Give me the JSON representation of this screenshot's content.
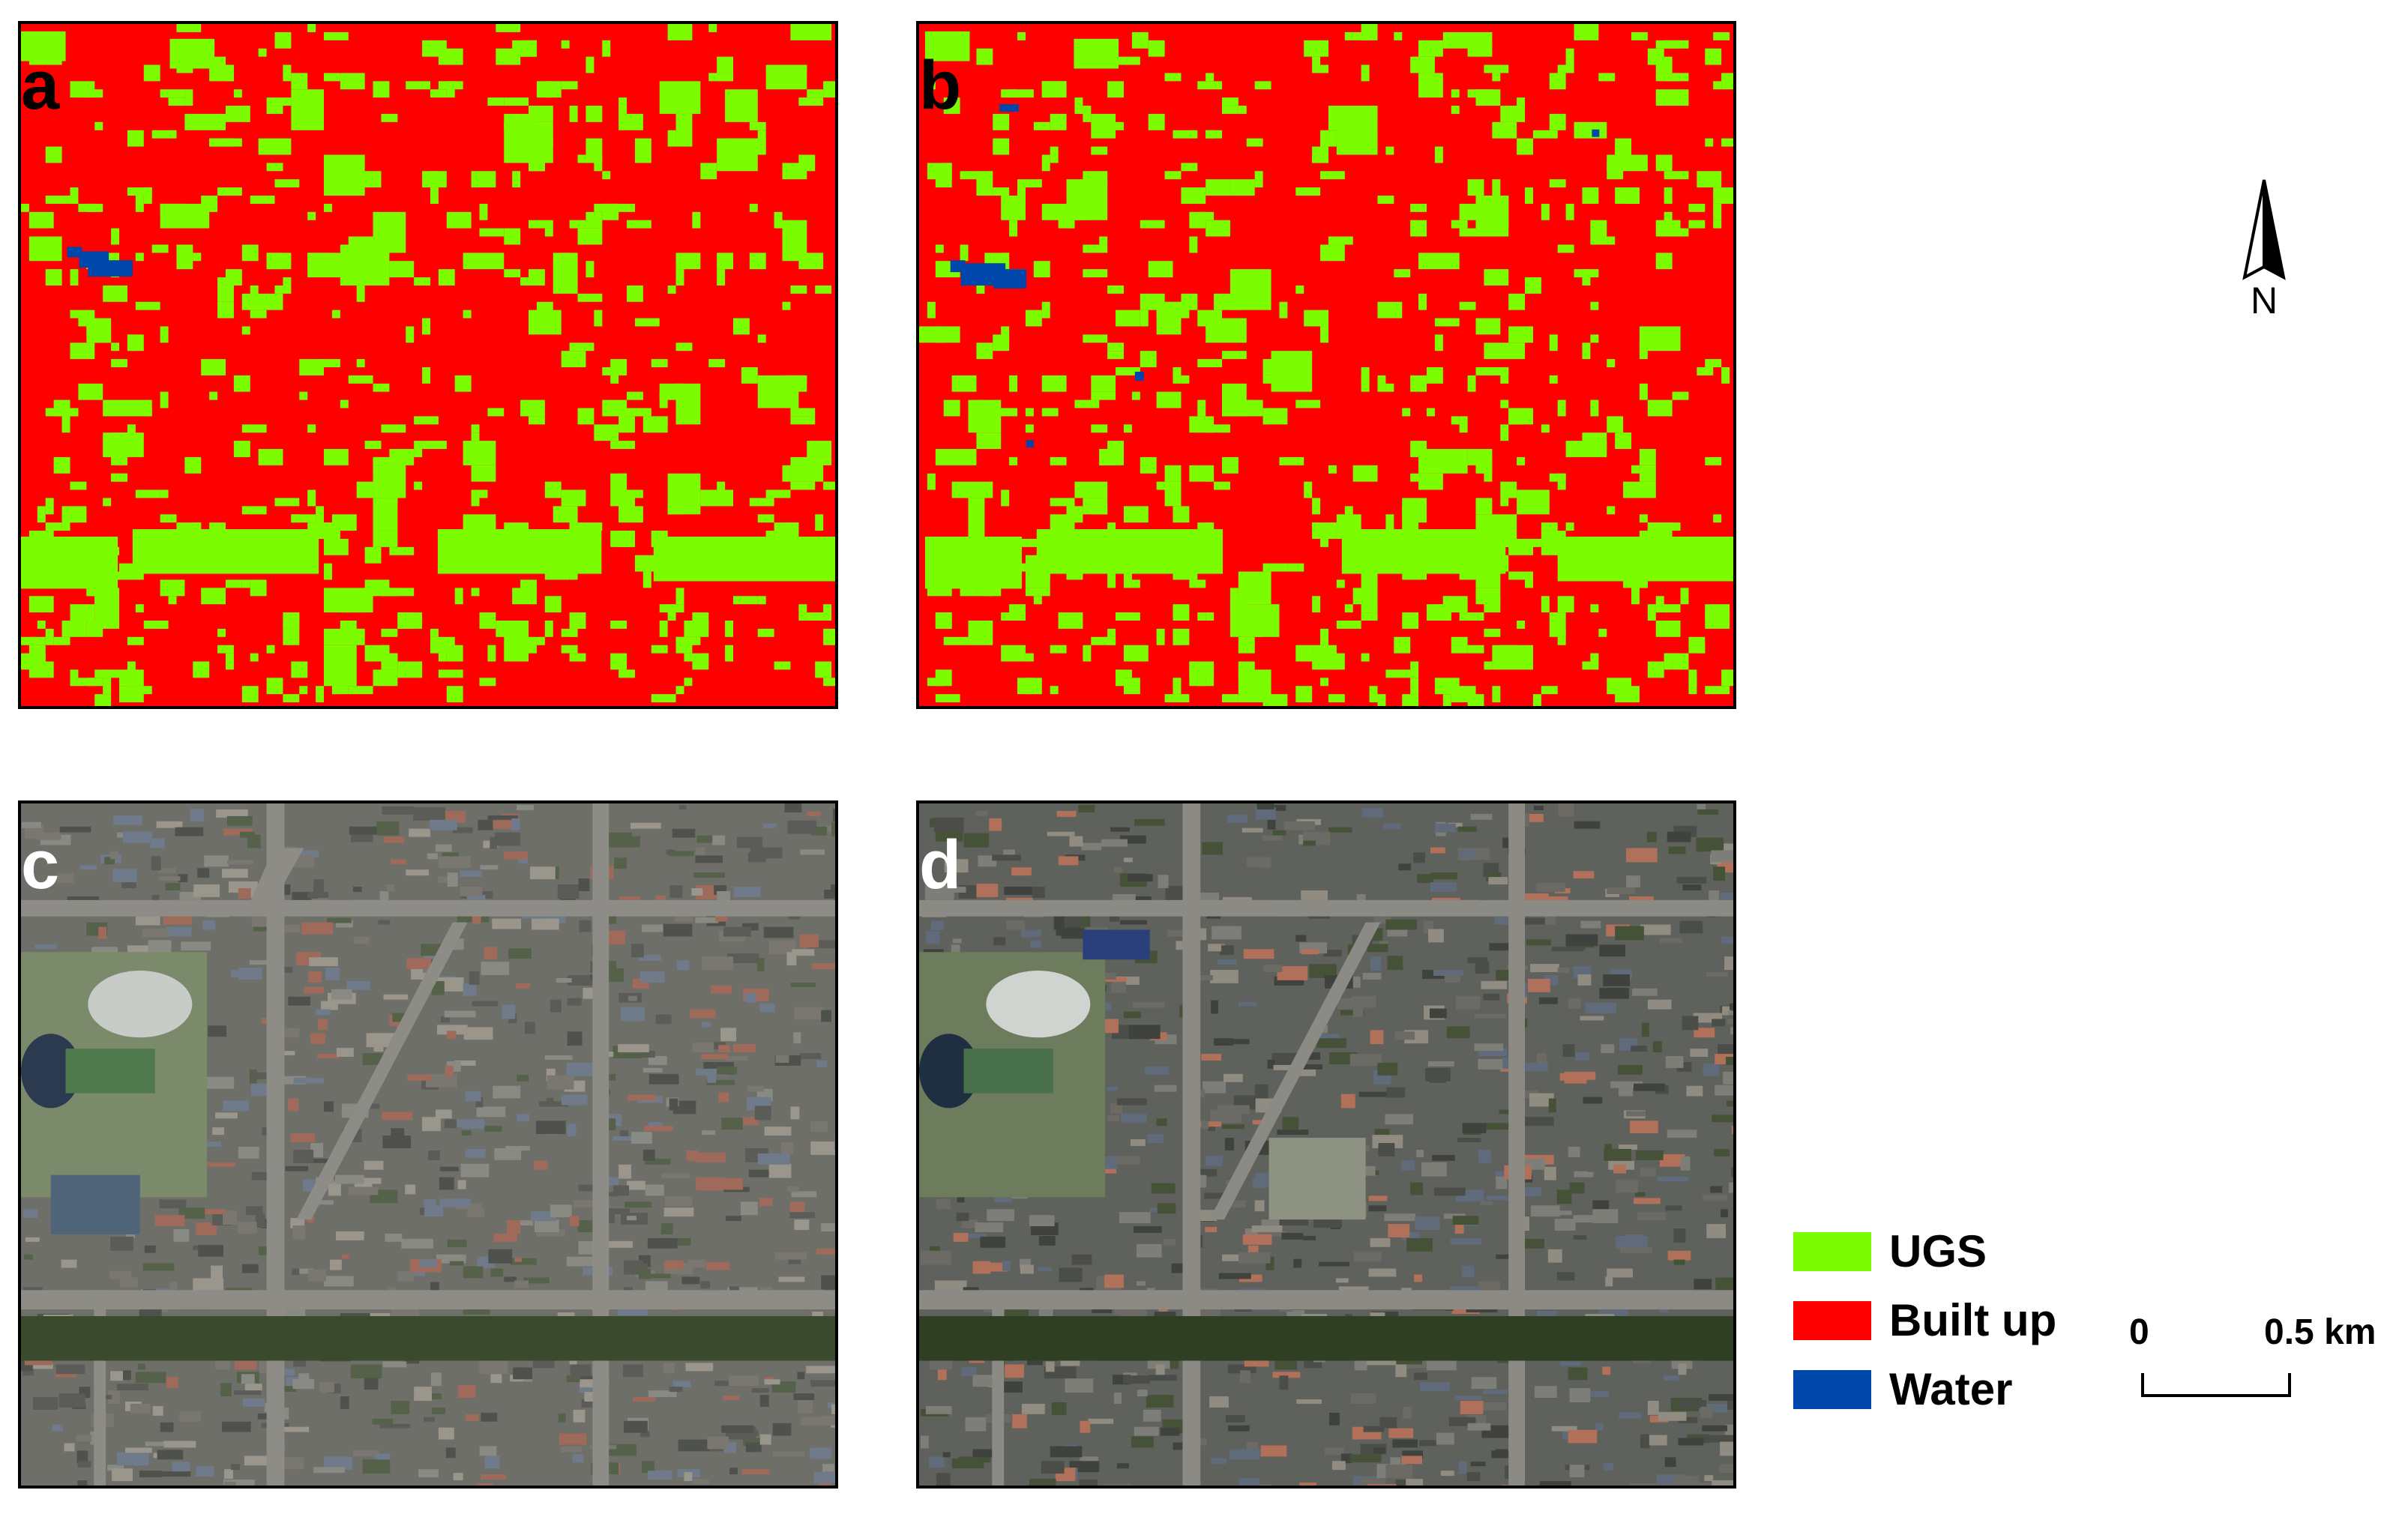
{
  "panels": [
    {
      "letter": "a",
      "kind": "classification",
      "letter_color": "dark"
    },
    {
      "letter": "b",
      "kind": "classification",
      "letter_color": "dark"
    },
    {
      "letter": "c",
      "kind": "satellite",
      "letter_color": "light"
    },
    {
      "letter": "d",
      "kind": "satellite",
      "letter_color": "light"
    }
  ],
  "north_arrow": {
    "label": "N"
  },
  "legend": {
    "items": [
      {
        "label": "UGS",
        "color": "#7CFC00"
      },
      {
        "label": "Built up",
        "color": "#FF0000"
      },
      {
        "label": "Water",
        "color": "#0047AB"
      }
    ]
  },
  "scale_bar": {
    "start_label": "0",
    "end_label": "0.5 km"
  },
  "colors": {
    "ugs": "#7CFC00",
    "built_up": "#FF0000",
    "water": "#0047AB",
    "satellite_base": "#6f6f6a",
    "road": "#8b8b86",
    "vegetation": "#3b4a2c"
  }
}
